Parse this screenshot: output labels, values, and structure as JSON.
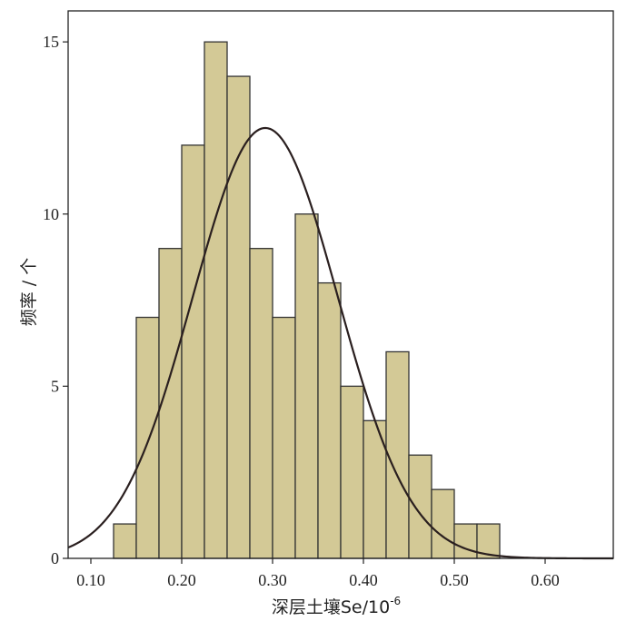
{
  "colors": {
    "bar_fill": "#d3c996",
    "bar_stroke": "#333333",
    "curve": "#2a1f1f",
    "frame": "#222222",
    "background": "#ffffff"
  },
  "chart_data": {
    "type": "bar",
    "title": "",
    "xlabel": {
      "main": "深层土壤Se/10",
      "superscript": "-6"
    },
    "ylabel": "频率 / 个",
    "xlim": [
      0.075,
      0.675
    ],
    "ylim": [
      0,
      15.9
    ],
    "grid": false,
    "bin_width": 0.025,
    "bins": [
      {
        "x": 0.125,
        "value": 1
      },
      {
        "x": 0.15,
        "value": 7
      },
      {
        "x": 0.175,
        "value": 9
      },
      {
        "x": 0.2,
        "value": 12
      },
      {
        "x": 0.225,
        "value": 15
      },
      {
        "x": 0.25,
        "value": 14
      },
      {
        "x": 0.275,
        "value": 9
      },
      {
        "x": 0.3,
        "value": 7
      },
      {
        "x": 0.325,
        "value": 10
      },
      {
        "x": 0.35,
        "value": 8
      },
      {
        "x": 0.375,
        "value": 5
      },
      {
        "x": 0.4,
        "value": 4
      },
      {
        "x": 0.425,
        "value": 6
      },
      {
        "x": 0.45,
        "value": 3
      },
      {
        "x": 0.475,
        "value": 2
      },
      {
        "x": 0.5,
        "value": 1
      },
      {
        "x": 0.525,
        "value": 1
      }
    ],
    "x_ticks": [
      {
        "value": 0.1,
        "label": "0.10"
      },
      {
        "value": 0.2,
        "label": "0.20"
      },
      {
        "value": 0.3,
        "label": "0.30"
      },
      {
        "value": 0.4,
        "label": "0.40"
      },
      {
        "value": 0.5,
        "label": "0.50"
      },
      {
        "value": 0.6,
        "label": "0.60"
      }
    ],
    "y_ticks": [
      {
        "value": 0,
        "label": "0"
      },
      {
        "value": 5,
        "label": "5"
      },
      {
        "value": 10,
        "label": "10"
      },
      {
        "value": 15,
        "label": "15"
      }
    ],
    "normal_curve": {
      "mean": 0.292,
      "sd": 0.08,
      "peak": 12.5
    }
  }
}
